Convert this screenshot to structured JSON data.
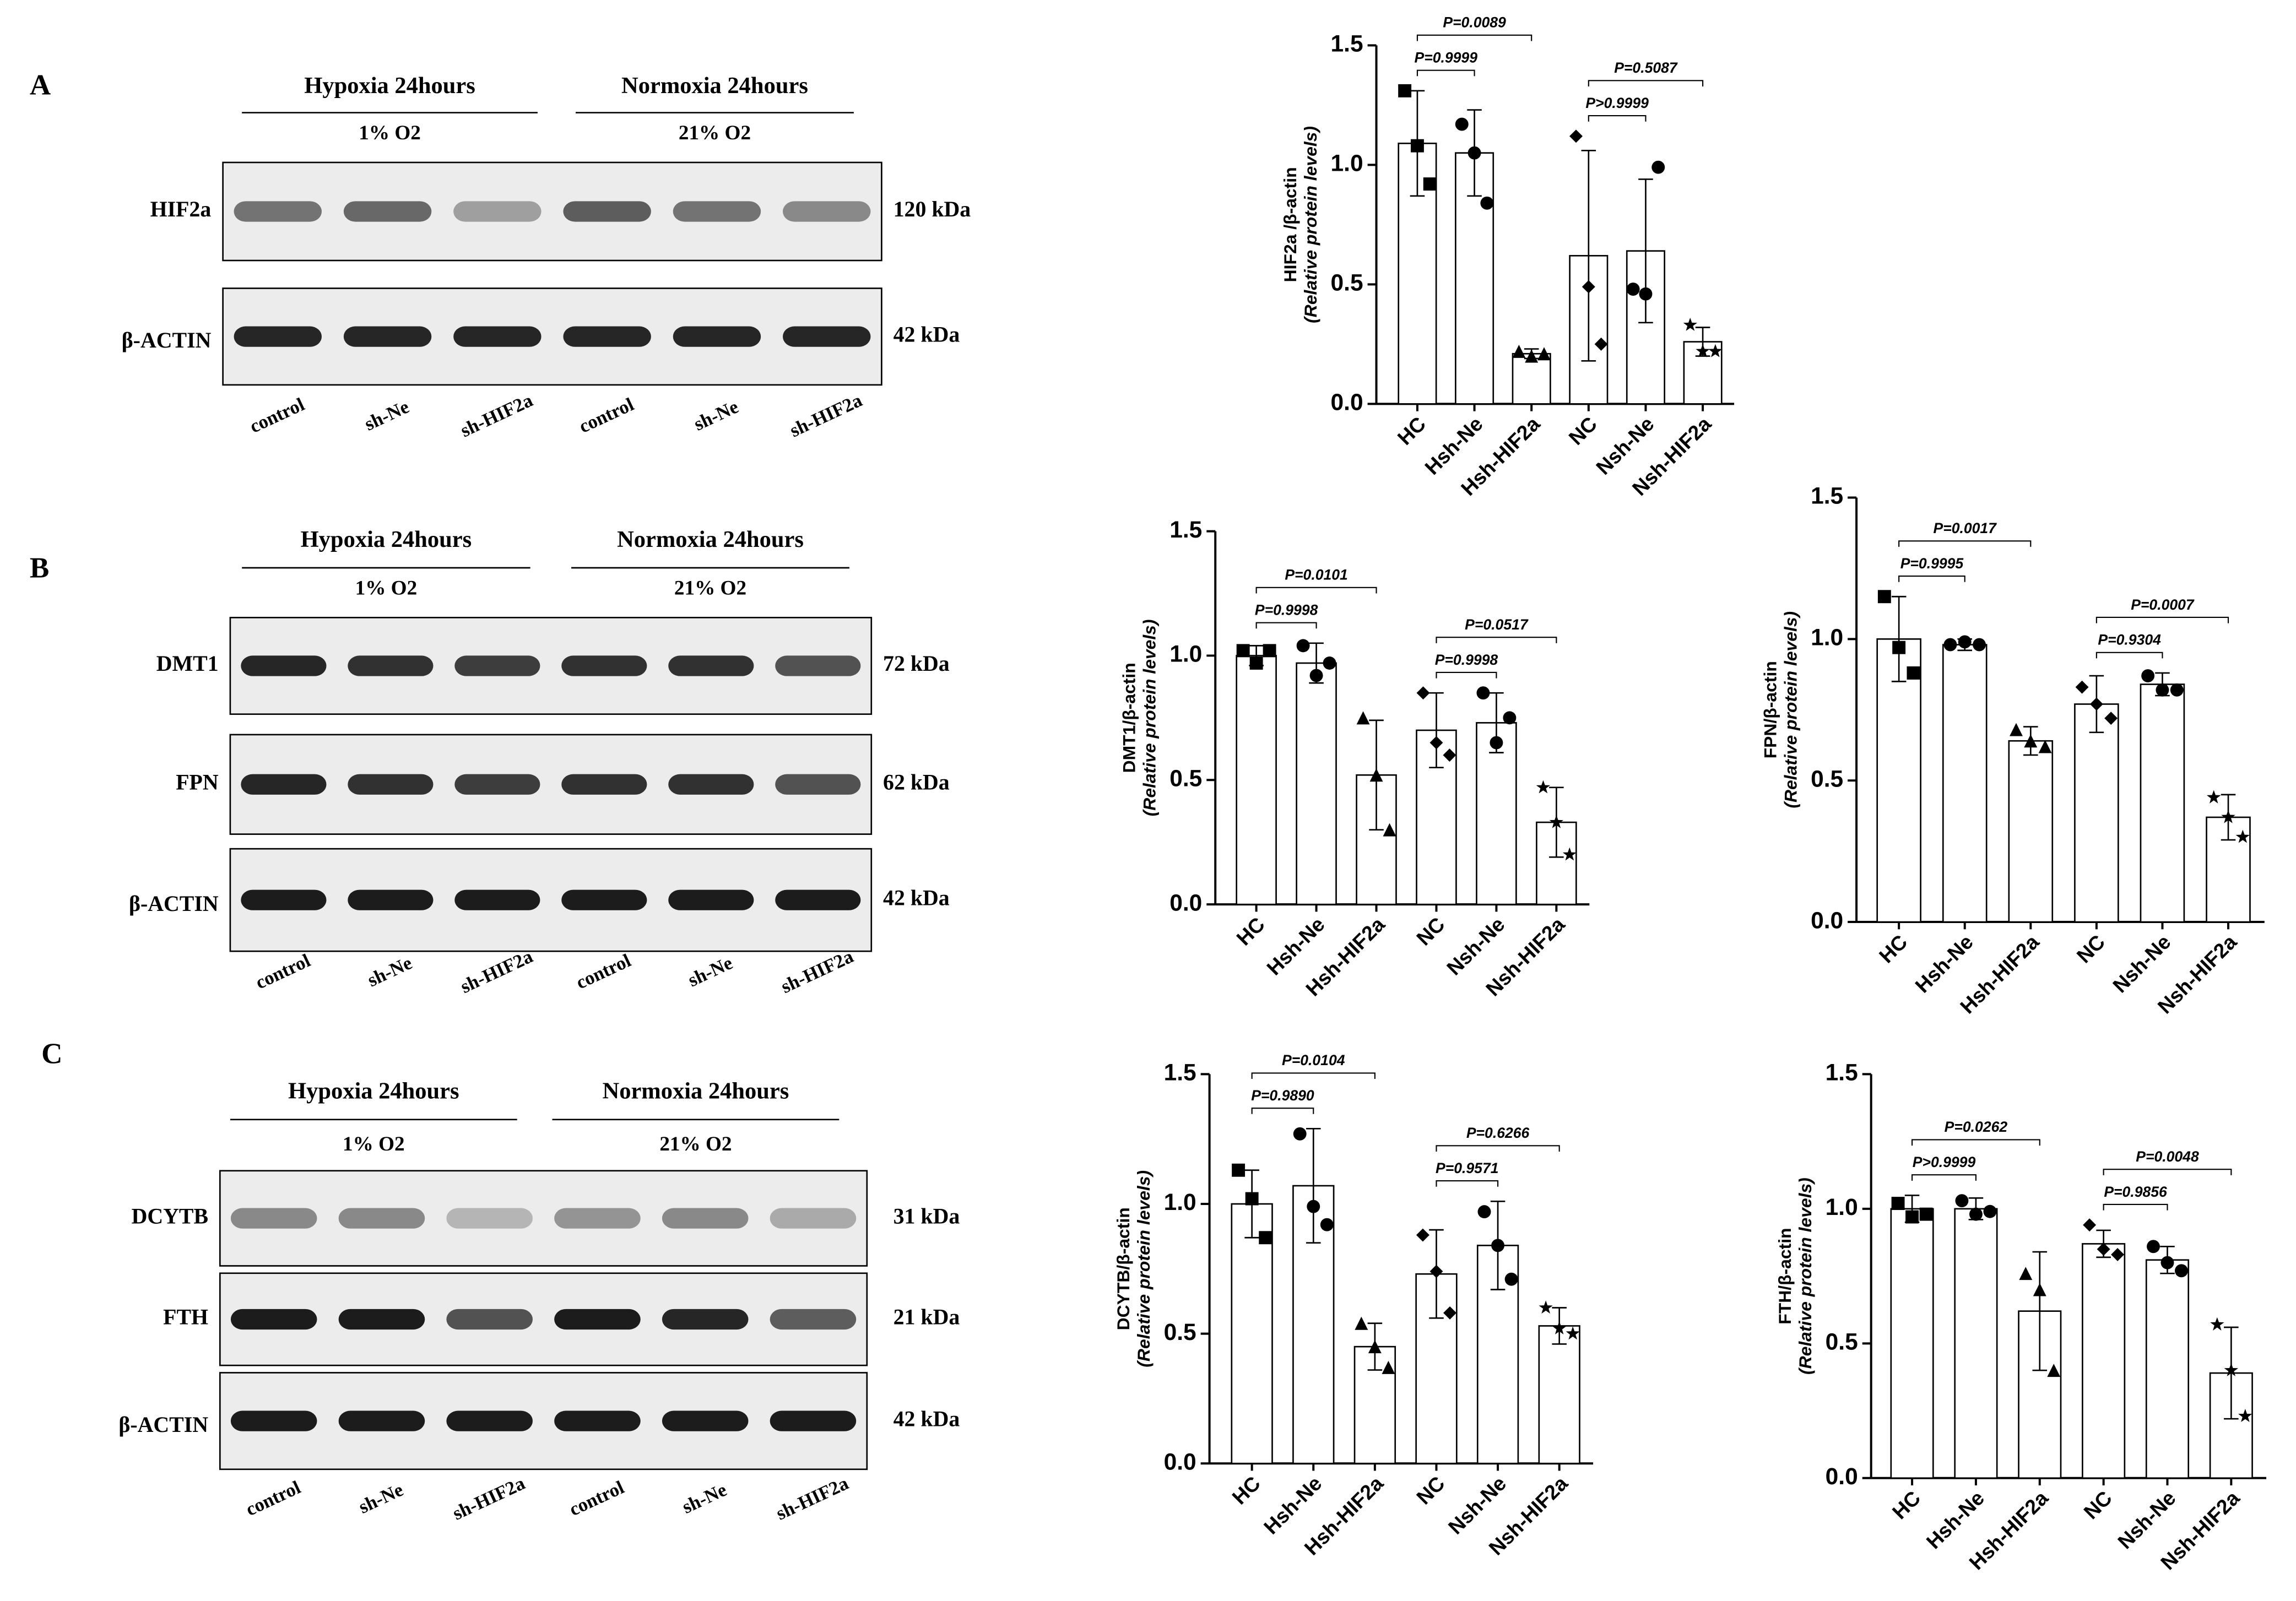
{
  "blots": [
    {
      "panel": "A",
      "groups": [
        "Hypoxia 24hours",
        "Normoxia 24hours"
      ],
      "oxygen": [
        "1% O2",
        "21% O2"
      ],
      "rows": [
        {
          "protein": "HIF2a",
          "size": "120 kDa"
        },
        {
          "protein": "β-ACTIN",
          "size": "42 kDa"
        }
      ],
      "lanes": [
        "control",
        "sh-Ne",
        "sh-HIF2a",
        "control",
        "sh-Ne",
        "sh-HIF2a"
      ]
    },
    {
      "panel": "B",
      "groups": [
        "Hypoxia 24hours",
        "Normoxia 24hours"
      ],
      "oxygen": [
        "1% O2",
        "21% O2"
      ],
      "rows": [
        {
          "protein": "DMT1",
          "size": "72 kDa"
        },
        {
          "protein": "FPN",
          "size": "62 kDa"
        },
        {
          "protein": "β-ACTIN",
          "size": "42 kDa"
        }
      ],
      "lanes": [
        "control",
        "sh-Ne",
        "sh-HIF2a",
        "control",
        "sh-Ne",
        "sh-HIF2a"
      ]
    },
    {
      "panel": "C",
      "groups": [
        "Hypoxia 24hours",
        "Normoxia 24hours"
      ],
      "oxygen": [
        "1% O2",
        "21% O2"
      ],
      "rows": [
        {
          "protein": "DCYTB",
          "size": "31 kDa"
        },
        {
          "protein": "FTH",
          "size": "21 kDa"
        },
        {
          "protein": "β-ACTIN",
          "size": "42 kDa"
        }
      ],
      "lanes": [
        "control",
        "sh-Ne",
        "sh-HIF2a",
        "control",
        "sh-Ne",
        "sh-HIF2a"
      ]
    }
  ],
  "chart_data": [
    {
      "type": "bar",
      "ylabel": [
        "HIF2a /β-actin",
        "(Relative protein levels)"
      ],
      "categories": [
        "HC",
        "Hsh-Ne",
        "Hsh-HIF2a",
        "NC",
        "Nsh-Ne",
        "Nsh-HIF2a"
      ],
      "values": [
        1.09,
        1.05,
        0.21,
        0.62,
        0.64,
        0.26
      ],
      "errors": [
        0.22,
        0.18,
        0.02,
        0.44,
        0.3,
        0.06
      ],
      "points": [
        [
          1.31,
          1.08,
          0.92
        ],
        [
          1.17,
          1.05,
          0.84
        ],
        [
          0.22,
          0.2,
          0.21
        ],
        [
          1.12,
          0.49,
          0.25
        ],
        [
          0.48,
          0.46,
          0.99
        ],
        [
          0.33,
          0.22,
          0.22
        ]
      ],
      "markers": [
        "square",
        "circle",
        "triangle",
        "diamond",
        "circle",
        "star"
      ],
      "color": "#ffffff",
      "ylim": [
        0,
        1.5
      ],
      "yticks": [
        {
          "value": 0,
          "label": "0.0"
        },
        0.5,
        {
          "value": 1,
          "label": "1.0"
        },
        1.5
      ],
      "annotations": [
        {
          "text": "P=0.0089",
          "from": 0,
          "to": 2
        },
        {
          "text": "P=0.9999",
          "from": 0,
          "to": 1
        },
        {
          "text": "P=0.5087",
          "from": 3,
          "to": 5
        },
        {
          "text": "P>0.9999",
          "from": 3,
          "to": 4
        }
      ]
    },
    {
      "type": "bar",
      "ylabel": [
        "DMT1/β-actin",
        "(Relative protein levels)"
      ],
      "categories": [
        "HC",
        "Hsh-Ne",
        "Hsh-HIF2a",
        "NC",
        "Nsh-Ne",
        "Nsh-HIF2a"
      ],
      "values": [
        1.0,
        0.97,
        0.52,
        0.7,
        0.73,
        0.33
      ],
      "errors": [
        0.04,
        0.08,
        0.22,
        0.15,
        0.12,
        0.14
      ],
      "points": [
        [
          1.02,
          0.97,
          1.02
        ],
        [
          1.04,
          0.92,
          0.97
        ],
        [
          0.75,
          0.52,
          0.3
        ],
        [
          0.85,
          0.65,
          0.6
        ],
        [
          0.85,
          0.65,
          0.75
        ],
        [
          0.47,
          0.33,
          0.2
        ]
      ],
      "markers": [
        "square",
        "circle",
        "triangle",
        "diamond",
        "circle",
        "star"
      ],
      "color": "#ffffff",
      "ylim": [
        0,
        1.5
      ],
      "yticks": [
        {
          "value": 0,
          "label": "0.0"
        },
        0.5,
        {
          "value": 1,
          "label": "1.0"
        },
        1.5
      ],
      "annotations": [
        {
          "text": "P=0.0101",
          "from": 0,
          "to": 2
        },
        {
          "text": "P=0.9998",
          "from": 0,
          "to": 1
        },
        {
          "text": "P=0.0517",
          "from": 3,
          "to": 5
        },
        {
          "text": "P=0.9998",
          "from": 3,
          "to": 4
        }
      ]
    },
    {
      "type": "bar",
      "ylabel": [
        "FPN/β-actin",
        "(Relative protein levels)"
      ],
      "categories": [
        "HC",
        "Hsh-Ne",
        "Hsh-HIF2a",
        "NC",
        "Nsh-Ne",
        "Nsh-HIF2a"
      ],
      "values": [
        1.0,
        0.98,
        0.64,
        0.77,
        0.84,
        0.37
      ],
      "errors": [
        0.15,
        0.02,
        0.05,
        0.1,
        0.04,
        0.08
      ],
      "points": [
        [
          1.15,
          0.97,
          0.88
        ],
        [
          0.98,
          0.99,
          0.98
        ],
        [
          0.68,
          0.64,
          0.62
        ],
        [
          0.83,
          0.77,
          0.72
        ],
        [
          0.87,
          0.82,
          0.82
        ],
        [
          0.44,
          0.37,
          0.3
        ]
      ],
      "markers": [
        "square",
        "circle",
        "triangle",
        "diamond",
        "circle",
        "star"
      ],
      "color": "#ffffff",
      "ylim": [
        0,
        1.5
      ],
      "yticks": [
        {
          "value": 0,
          "label": "0.0"
        },
        0.5,
        {
          "value": 1,
          "label": "1.0"
        },
        1.5
      ],
      "annotations": [
        {
          "text": "P=0.0017",
          "from": 0,
          "to": 2
        },
        {
          "text": "P=0.9995",
          "from": 0,
          "to": 1
        },
        {
          "text": "P=0.0007",
          "from": 3,
          "to": 5
        },
        {
          "text": "P=0.9304",
          "from": 3,
          "to": 4
        }
      ]
    },
    {
      "type": "bar",
      "ylabel": [
        "DCYTB/β-actin",
        "(Relative protein levels)"
      ],
      "categories": [
        "HC",
        "Hsh-Ne",
        "Hsh-HIF2a",
        "NC",
        "Nsh-Ne",
        "Nsh-HIF2a"
      ],
      "values": [
        1.0,
        1.07,
        0.45,
        0.73,
        0.84,
        0.53
      ],
      "errors": [
        0.13,
        0.22,
        0.09,
        0.17,
        0.17,
        0.07
      ],
      "points": [
        [
          1.13,
          1.02,
          0.87
        ],
        [
          1.27,
          0.99,
          0.92
        ],
        [
          0.54,
          0.45,
          0.37
        ],
        [
          0.88,
          0.74,
          0.58
        ],
        [
          0.97,
          0.84,
          0.71
        ],
        [
          0.6,
          0.52,
          0.5
        ]
      ],
      "markers": [
        "square",
        "circle",
        "triangle",
        "diamond",
        "circle",
        "star"
      ],
      "color": "#ffffff",
      "ylim": [
        0,
        1.5
      ],
      "yticks": [
        {
          "value": 0,
          "label": "0.0"
        },
        0.5,
        {
          "value": 1,
          "label": "1.0"
        },
        1.5
      ],
      "annotations": [
        {
          "text": "P=0.0104",
          "from": 0,
          "to": 2
        },
        {
          "text": "P=0.9890",
          "from": 0,
          "to": 1
        },
        {
          "text": "P=0.6266",
          "from": 3,
          "to": 5
        },
        {
          "text": "P=0.9571",
          "from": 3,
          "to": 4
        }
      ]
    },
    {
      "type": "bar",
      "ylabel": [
        "FTH/β-actin",
        "(Relative protein levels)"
      ],
      "categories": [
        "HC",
        "Hsh-Ne",
        "Hsh-HIF2a",
        "NC",
        "Nsh-Ne",
        "Nsh-HIF2a"
      ],
      "values": [
        1.0,
        1.0,
        0.62,
        0.87,
        0.81,
        0.39
      ],
      "errors": [
        0.05,
        0.04,
        0.22,
        0.05,
        0.05,
        0.17
      ],
      "points": [
        [
          1.02,
          0.97,
          0.98
        ],
        [
          1.03,
          0.98,
          0.99
        ],
        [
          0.76,
          0.7,
          0.4
        ],
        [
          0.94,
          0.85,
          0.83
        ],
        [
          0.86,
          0.8,
          0.77
        ],
        [
          0.57,
          0.4,
          0.23
        ]
      ],
      "markers": [
        "square",
        "circle",
        "triangle",
        "diamond",
        "circle",
        "star"
      ],
      "color": "#ffffff",
      "ylim": [
        0,
        1.5
      ],
      "yticks": [
        {
          "value": 0,
          "label": "0.0"
        },
        0.5,
        {
          "value": 1,
          "label": "1.0"
        },
        1.5
      ],
      "annotations": [
        {
          "text": "P=0.0262",
          "from": 0,
          "to": 2
        },
        {
          "text": "P>0.9999",
          "from": 0,
          "to": 1
        },
        {
          "text": "P=0.0048",
          "from": 3,
          "to": 5
        },
        {
          "text": "P=0.9856",
          "from": 3,
          "to": 4
        }
      ]
    }
  ]
}
